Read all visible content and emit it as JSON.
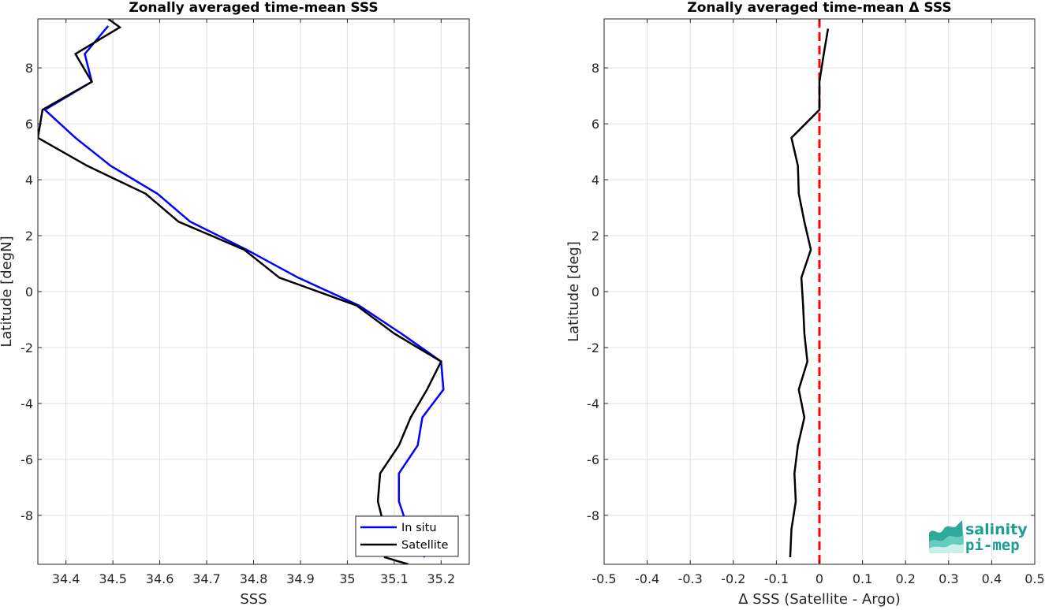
{
  "chart_data": [
    {
      "type": "line",
      "title": "Zonally averaged time-mean SSS",
      "xlabel": "SSS",
      "ylabel": "Latitude [degN]",
      "xlim": [
        34.34,
        35.26
      ],
      "ylim": [
        -9.75,
        9.75
      ],
      "xticks": [
        34.4,
        34.5,
        34.6,
        34.7,
        34.8,
        34.9,
        35.0,
        35.1,
        35.2
      ],
      "xtick_labels": [
        "34.4",
        "34.5",
        "34.6",
        "34.7",
        "34.8",
        "34.9",
        "35",
        "35.1",
        "35.2"
      ],
      "yticks": [
        -8,
        -6,
        -4,
        -2,
        0,
        2,
        4,
        6,
        8
      ],
      "grid": true,
      "legend": "bottom-right",
      "series": [
        {
          "name": "In situ",
          "color": "#0000ff",
          "points": [
            [
              34.49,
              9.5
            ],
            [
              34.44,
              8.5
            ],
            [
              34.455,
              7.5
            ],
            [
              34.355,
              6.5
            ],
            [
              34.42,
              5.5
            ],
            [
              34.495,
              4.5
            ],
            [
              34.595,
              3.5
            ],
            [
              34.665,
              2.5
            ],
            [
              34.785,
              1.5
            ],
            [
              34.895,
              0.5
            ],
            [
              35.025,
              -0.5
            ],
            [
              35.115,
              -1.5
            ],
            [
              35.2,
              -2.5
            ],
            [
              35.205,
              -3.5
            ],
            [
              35.16,
              -4.5
            ],
            [
              35.15,
              -5.5
            ],
            [
              35.11,
              -6.5
            ],
            [
              35.11,
              -7.5
            ],
            [
              35.13,
              -8.5
            ],
            [
              35.165,
              -9.5
            ]
          ]
        },
        {
          "name": "Satellite",
          "color": "#000000",
          "points": [
            [
              34.49,
              9.75
            ],
            [
              34.515,
              9.45
            ],
            [
              34.42,
              8.5
            ],
            [
              34.455,
              7.5
            ],
            [
              34.35,
              6.5
            ],
            [
              34.34,
              5.5
            ],
            [
              34.445,
              4.5
            ],
            [
              34.57,
              3.5
            ],
            [
              34.64,
              2.5
            ],
            [
              34.78,
              1.5
            ],
            [
              34.855,
              0.5
            ],
            [
              35.02,
              -0.5
            ],
            [
              35.1,
              -1.5
            ],
            [
              35.2,
              -2.5
            ],
            [
              35.17,
              -3.5
            ],
            [
              35.135,
              -4.5
            ],
            [
              35.11,
              -5.5
            ],
            [
              35.07,
              -6.5
            ],
            [
              35.065,
              -7.5
            ],
            [
              35.08,
              -8.5
            ],
            [
              35.08,
              -9.5
            ],
            [
              35.13,
              -9.75
            ]
          ]
        }
      ]
    },
    {
      "type": "line",
      "title": "Zonally averaged time-mean Δ SSS",
      "xlabel": "Δ SSS (Satellite - Argo)",
      "ylabel": "Latitude [deg]",
      "xlim": [
        -0.5,
        0.5
      ],
      "ylim": [
        -9.75,
        9.75
      ],
      "xticks": [
        -0.5,
        -0.4,
        -0.3,
        -0.2,
        -0.1,
        0,
        0.1,
        0.2,
        0.3,
        0.4,
        0.5
      ],
      "xtick_labels": [
        "-0.5",
        "-0.4",
        "-0.3",
        "-0.2",
        "-0.1",
        "0",
        "0.1",
        "0.2",
        "0.3",
        "0.4",
        "0.5"
      ],
      "yticks": [
        -8,
        -6,
        -4,
        -2,
        0,
        2,
        4,
        6,
        8
      ],
      "grid": true,
      "reference_line": {
        "x": 0,
        "color": "#ff0000",
        "style": "dashed"
      },
      "series": [
        {
          "color": "#000000",
          "points": [
            [
              0.02,
              9.4
            ],
            [
              0.01,
              8.5
            ],
            [
              0.0,
              7.5
            ],
            [
              0.0,
              6.5
            ],
            [
              -0.065,
              5.5
            ],
            [
              -0.05,
              4.5
            ],
            [
              -0.048,
              3.5
            ],
            [
              -0.035,
              2.5
            ],
            [
              -0.02,
              1.5
            ],
            [
              -0.042,
              0.5
            ],
            [
              -0.038,
              -0.5
            ],
            [
              -0.035,
              -1.5
            ],
            [
              -0.028,
              -2.5
            ],
            [
              -0.048,
              -3.5
            ],
            [
              -0.035,
              -4.5
            ],
            [
              -0.05,
              -5.5
            ],
            [
              -0.058,
              -6.5
            ],
            [
              -0.055,
              -7.5
            ],
            [
              -0.065,
              -8.5
            ],
            [
              -0.068,
              -9.5
            ]
          ]
        }
      ]
    }
  ],
  "logo": {
    "line1": "salinity",
    "line2": "pi-mep",
    "color": "#1a9e8f"
  }
}
